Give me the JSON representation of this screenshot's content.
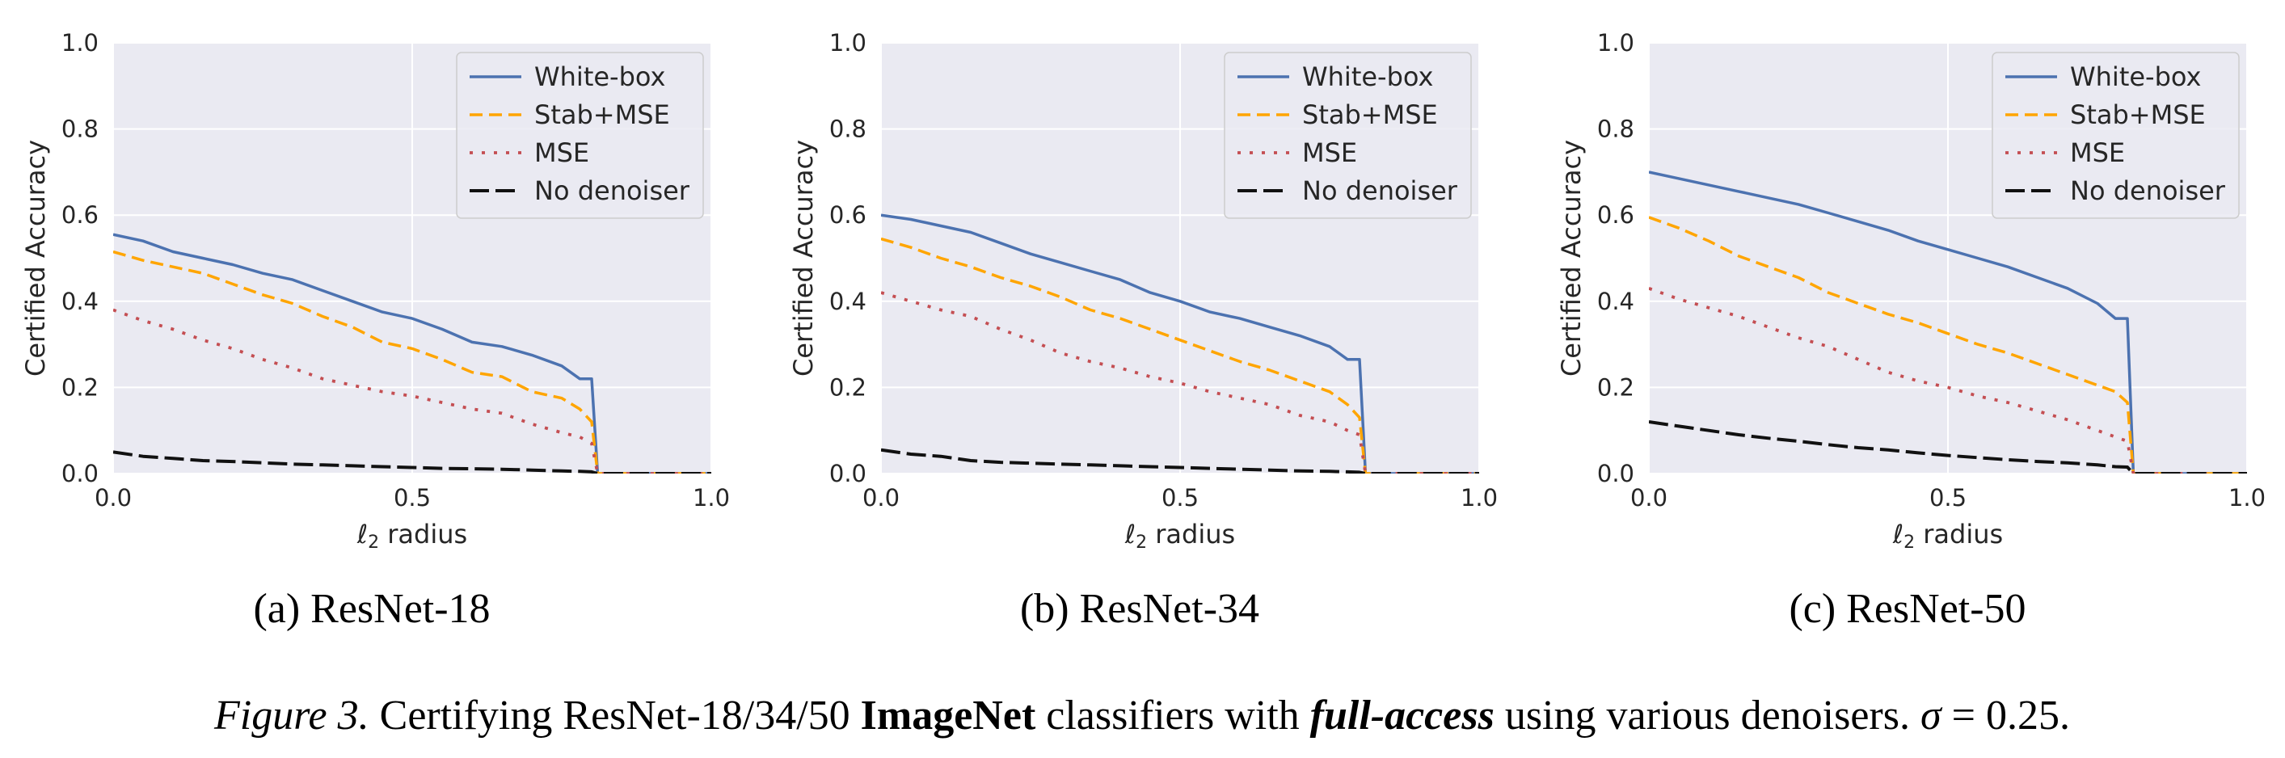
{
  "figure": {
    "caption": {
      "label": "Figure 3.",
      "part1": " Certifying ResNet-18/34/50 ",
      "bold": "ImageNet",
      "part2": " classifiers with ",
      "bolditalic": "full-access",
      "part3": " using various denoisers. ",
      "sigma": "σ",
      "part4": " = 0.25."
    }
  },
  "colors": {
    "white_box": "#4c72b0",
    "stab_mse": "#ffa500",
    "mse": "#c44e52",
    "no_denoiser": "#111111",
    "plot_bg": "#eaeaf2"
  },
  "chart_data": [
    {
      "type": "line",
      "caption": "(a) ResNet-18",
      "xlabel_prefix": "ℓ",
      "xlabel_sub": "2",
      "xlabel_suffix": " radius",
      "ylabel": "Certified Accuracy",
      "xlim": [
        0,
        1.0
      ],
      "ylim": [
        0,
        1.0
      ],
      "xticks": [
        "0.0",
        "0.5",
        "1.0"
      ],
      "yticks": [
        "0.0",
        "0.2",
        "0.4",
        "0.6",
        "0.8",
        "1.0"
      ],
      "grid": true,
      "legend_position": "top-right",
      "series": [
        {
          "name": "White-box",
          "style": "solid",
          "x": [
            0,
            0.05,
            0.1,
            0.15,
            0.2,
            0.25,
            0.3,
            0.35,
            0.4,
            0.45,
            0.5,
            0.55,
            0.6,
            0.65,
            0.7,
            0.75,
            0.78,
            0.8,
            0.81,
            0.82,
            1.0
          ],
          "y": [
            0.555,
            0.54,
            0.515,
            0.5,
            0.485,
            0.465,
            0.45,
            0.425,
            0.4,
            0.375,
            0.36,
            0.335,
            0.305,
            0.295,
            0.275,
            0.25,
            0.22,
            0.22,
            0.0,
            0.0,
            0.0
          ]
        },
        {
          "name": "Stab+MSE",
          "style": "dashed",
          "x": [
            0,
            0.05,
            0.1,
            0.15,
            0.2,
            0.25,
            0.3,
            0.35,
            0.4,
            0.45,
            0.5,
            0.55,
            0.6,
            0.65,
            0.7,
            0.75,
            0.78,
            0.8,
            0.81,
            0.82,
            1.0
          ],
          "y": [
            0.515,
            0.495,
            0.48,
            0.465,
            0.44,
            0.415,
            0.395,
            0.365,
            0.34,
            0.305,
            0.29,
            0.265,
            0.235,
            0.225,
            0.19,
            0.175,
            0.15,
            0.12,
            0.0,
            0.0,
            0.0
          ]
        },
        {
          "name": "MSE",
          "style": "dotted",
          "x": [
            0,
            0.05,
            0.1,
            0.15,
            0.2,
            0.25,
            0.3,
            0.35,
            0.4,
            0.45,
            0.5,
            0.55,
            0.6,
            0.65,
            0.7,
            0.75,
            0.78,
            0.8,
            0.81,
            0.82,
            1.0
          ],
          "y": [
            0.38,
            0.355,
            0.335,
            0.31,
            0.29,
            0.265,
            0.245,
            0.22,
            0.205,
            0.19,
            0.18,
            0.165,
            0.15,
            0.14,
            0.115,
            0.095,
            0.085,
            0.07,
            0.0,
            0.0,
            0.0
          ]
        },
        {
          "name": "No denoiser",
          "style": "longdash",
          "x": [
            0,
            0.05,
            0.1,
            0.15,
            0.2,
            0.25,
            0.3,
            0.35,
            0.4,
            0.45,
            0.5,
            0.55,
            0.6,
            0.65,
            0.7,
            0.75,
            0.78,
            0.8,
            0.81,
            0.82,
            1.0
          ],
          "y": [
            0.05,
            0.04,
            0.035,
            0.03,
            0.028,
            0.025,
            0.022,
            0.02,
            0.018,
            0.016,
            0.014,
            0.012,
            0.011,
            0.01,
            0.008,
            0.006,
            0.005,
            0.004,
            0.0,
            0.0,
            0.0
          ]
        }
      ]
    },
    {
      "type": "line",
      "caption": "(b) ResNet-34",
      "xlabel_prefix": "ℓ",
      "xlabel_sub": "2",
      "xlabel_suffix": " radius",
      "ylabel": "Certified Accuracy",
      "xlim": [
        0,
        1.0
      ],
      "ylim": [
        0,
        1.0
      ],
      "xticks": [
        "0.0",
        "0.5",
        "1.0"
      ],
      "yticks": [
        "0.0",
        "0.2",
        "0.4",
        "0.6",
        "0.8",
        "1.0"
      ],
      "grid": true,
      "legend_position": "top-right",
      "series": [
        {
          "name": "White-box",
          "style": "solid",
          "x": [
            0,
            0.05,
            0.1,
            0.15,
            0.2,
            0.25,
            0.3,
            0.35,
            0.4,
            0.45,
            0.5,
            0.55,
            0.6,
            0.65,
            0.7,
            0.75,
            0.78,
            0.8,
            0.81,
            0.82,
            1.0
          ],
          "y": [
            0.6,
            0.59,
            0.575,
            0.56,
            0.535,
            0.51,
            0.49,
            0.47,
            0.45,
            0.42,
            0.4,
            0.375,
            0.36,
            0.34,
            0.32,
            0.295,
            0.265,
            0.265,
            0.0,
            0.0,
            0.0
          ]
        },
        {
          "name": "Stab+MSE",
          "style": "dashed",
          "x": [
            0,
            0.05,
            0.1,
            0.15,
            0.2,
            0.25,
            0.3,
            0.35,
            0.4,
            0.45,
            0.5,
            0.55,
            0.6,
            0.65,
            0.7,
            0.75,
            0.78,
            0.8,
            0.81,
            0.82,
            1.0
          ],
          "y": [
            0.545,
            0.525,
            0.5,
            0.48,
            0.455,
            0.435,
            0.41,
            0.38,
            0.36,
            0.335,
            0.31,
            0.285,
            0.26,
            0.24,
            0.215,
            0.19,
            0.16,
            0.13,
            0.0,
            0.0,
            0.0
          ]
        },
        {
          "name": "MSE",
          "style": "dotted",
          "x": [
            0,
            0.05,
            0.1,
            0.15,
            0.2,
            0.25,
            0.3,
            0.35,
            0.4,
            0.45,
            0.5,
            0.55,
            0.6,
            0.65,
            0.7,
            0.75,
            0.78,
            0.8,
            0.81,
            0.82,
            1.0
          ],
          "y": [
            0.42,
            0.4,
            0.38,
            0.365,
            0.335,
            0.31,
            0.28,
            0.26,
            0.245,
            0.225,
            0.21,
            0.19,
            0.175,
            0.16,
            0.135,
            0.12,
            0.1,
            0.09,
            0.0,
            0.0,
            0.0
          ]
        },
        {
          "name": "No denoiser",
          "style": "longdash",
          "x": [
            0,
            0.05,
            0.1,
            0.15,
            0.2,
            0.25,
            0.3,
            0.35,
            0.4,
            0.45,
            0.5,
            0.55,
            0.6,
            0.65,
            0.7,
            0.75,
            0.78,
            0.8,
            0.81,
            0.82,
            1.0
          ],
          "y": [
            0.055,
            0.045,
            0.04,
            0.03,
            0.026,
            0.024,
            0.022,
            0.02,
            0.018,
            0.016,
            0.014,
            0.012,
            0.01,
            0.008,
            0.006,
            0.005,
            0.004,
            0.003,
            0.0,
            0.0,
            0.0
          ]
        }
      ]
    },
    {
      "type": "line",
      "caption": "(c) ResNet-50",
      "xlabel_prefix": "ℓ",
      "xlabel_sub": "2",
      "xlabel_suffix": " radius",
      "ylabel": "Certified Accuracy",
      "xlim": [
        0,
        1.0
      ],
      "ylim": [
        0,
        1.0
      ],
      "xticks": [
        "0.0",
        "0.5",
        "1.0"
      ],
      "yticks": [
        "0.0",
        "0.2",
        "0.4",
        "0.6",
        "0.8",
        "1.0"
      ],
      "grid": true,
      "legend_position": "top-right",
      "series": [
        {
          "name": "White-box",
          "style": "solid",
          "x": [
            0,
            0.05,
            0.1,
            0.15,
            0.2,
            0.25,
            0.3,
            0.35,
            0.4,
            0.45,
            0.5,
            0.55,
            0.6,
            0.65,
            0.7,
            0.75,
            0.78,
            0.8,
            0.81,
            0.82,
            1.0
          ],
          "y": [
            0.7,
            0.685,
            0.67,
            0.655,
            0.64,
            0.625,
            0.605,
            0.585,
            0.565,
            0.54,
            0.52,
            0.5,
            0.48,
            0.455,
            0.43,
            0.395,
            0.36,
            0.36,
            0.0,
            0.0,
            0.0
          ]
        },
        {
          "name": "Stab+MSE",
          "style": "dashed",
          "x": [
            0,
            0.05,
            0.1,
            0.15,
            0.2,
            0.25,
            0.3,
            0.35,
            0.4,
            0.45,
            0.5,
            0.55,
            0.6,
            0.65,
            0.7,
            0.75,
            0.78,
            0.8,
            0.81,
            0.82,
            1.0
          ],
          "y": [
            0.595,
            0.57,
            0.54,
            0.505,
            0.48,
            0.455,
            0.42,
            0.395,
            0.37,
            0.35,
            0.325,
            0.3,
            0.28,
            0.255,
            0.23,
            0.205,
            0.19,
            0.165,
            0.0,
            0.0,
            0.0
          ]
        },
        {
          "name": "MSE",
          "style": "dotted",
          "x": [
            0,
            0.05,
            0.1,
            0.15,
            0.2,
            0.25,
            0.3,
            0.35,
            0.4,
            0.45,
            0.5,
            0.55,
            0.6,
            0.65,
            0.7,
            0.75,
            0.78,
            0.8,
            0.81,
            0.82,
            1.0
          ],
          "y": [
            0.43,
            0.405,
            0.385,
            0.365,
            0.34,
            0.315,
            0.295,
            0.265,
            0.235,
            0.215,
            0.2,
            0.18,
            0.165,
            0.145,
            0.125,
            0.1,
            0.085,
            0.075,
            0.0,
            0.0,
            0.0
          ]
        },
        {
          "name": "No denoiser",
          "style": "longdash",
          "x": [
            0,
            0.05,
            0.1,
            0.15,
            0.2,
            0.25,
            0.3,
            0.35,
            0.4,
            0.45,
            0.5,
            0.55,
            0.6,
            0.65,
            0.7,
            0.75,
            0.78,
            0.8,
            0.81,
            0.82,
            1.0
          ],
          "y": [
            0.12,
            0.11,
            0.1,
            0.09,
            0.082,
            0.075,
            0.067,
            0.06,
            0.055,
            0.048,
            0.042,
            0.037,
            0.032,
            0.028,
            0.025,
            0.02,
            0.016,
            0.015,
            0.0,
            0.0,
            0.0
          ]
        }
      ]
    }
  ]
}
